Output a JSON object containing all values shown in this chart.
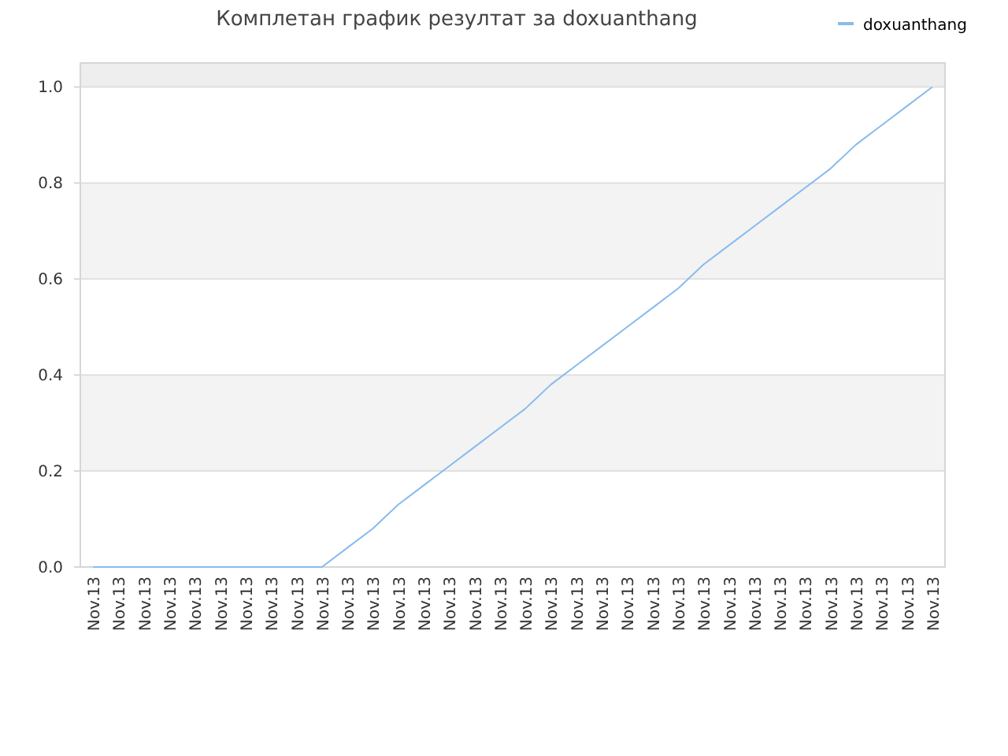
{
  "chart_data": {
    "type": "line",
    "title": "Комплетан график резултат за doxuanthang",
    "categories": [
      "Nov.13",
      "Nov.13",
      "Nov.13",
      "Nov.13",
      "Nov.13",
      "Nov.13",
      "Nov.13",
      "Nov.13",
      "Nov.13",
      "Nov.13",
      "Nov.13",
      "Nov.13",
      "Nov.13",
      "Nov.13",
      "Nov.13",
      "Nov.13",
      "Nov.13",
      "Nov.13",
      "Nov.13",
      "Nov.13",
      "Nov.13",
      "Nov.13",
      "Nov.13",
      "Nov.13",
      "Nov.13",
      "Nov.13",
      "Nov.13",
      "Nov.13",
      "Nov.13",
      "Nov.13",
      "Nov.13",
      "Nov.13",
      "Nov.13",
      "Nov.13"
    ],
    "series": [
      {
        "name": "doxuanthang",
        "color": "#88bbee",
        "values": [
          0,
          0,
          0,
          0,
          0,
          0,
          0,
          0,
          0,
          0,
          0.04,
          0.08,
          0.13,
          0.17,
          0.21,
          0.25,
          0.29,
          0.33,
          0.38,
          0.42,
          0.46,
          0.5,
          0.54,
          0.58,
          0.63,
          0.67,
          0.71,
          0.75,
          0.79,
          0.83,
          0.88,
          0.92,
          0.96,
          1
        ]
      }
    ],
    "ylim": [
      0,
      1.05
    ],
    "yticks": [
      {
        "value": 0,
        "label": "0.0"
      },
      {
        "value": 0.2,
        "label": "0.2"
      },
      {
        "value": 0.4,
        "label": "0.4"
      },
      {
        "value": 0.6,
        "label": "0.6"
      },
      {
        "value": 0.8,
        "label": "0.8"
      },
      {
        "value": 1,
        "label": "1.0"
      }
    ],
    "bands": [
      {
        "axis": "y",
        "from": 0.2,
        "to": 0.4,
        "color": "#f3f3f3"
      },
      {
        "axis": "y",
        "from": 0.6,
        "to": 0.8,
        "color": "#f3f3f3"
      },
      {
        "axis": "y",
        "from": 1,
        "to": 1.05,
        "color": "#eeeeee"
      }
    ],
    "grid": "y",
    "legend": "top right",
    "marker": "none",
    "line_style": "solid"
  }
}
